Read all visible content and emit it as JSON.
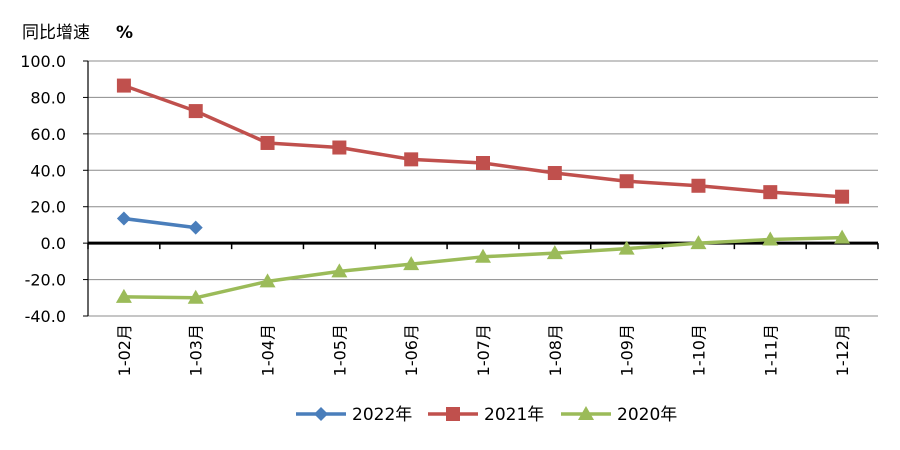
{
  "chart_data": {
    "type": "line",
    "ylabel": "同比增速",
    "yunit": "%",
    "ylim": [
      -40,
      100
    ],
    "yticks": [
      100,
      80,
      60,
      40,
      20,
      0,
      -20,
      -40
    ],
    "ytick_labels": [
      "100.0",
      "80.0",
      "60.0",
      "40.0",
      "20.0",
      "0.0",
      "-20.0",
      "-40.0"
    ],
    "grid": true,
    "legend": "bottom",
    "categories": [
      "1-02月",
      "1-03月",
      "1-04月",
      "1-05月",
      "1-06月",
      "1-07月",
      "1-08月",
      "1-09月",
      "1-10月",
      "1-11月",
      "1-12月"
    ],
    "series": [
      {
        "name": "2022年",
        "marker": "diamond",
        "color": "#4a7ebb",
        "values": [
          13.5,
          8.5,
          null,
          null,
          null,
          null,
          null,
          null,
          null,
          null,
          null
        ]
      },
      {
        "name": "2021年",
        "marker": "square",
        "color": "#c0504d",
        "values": [
          86.5,
          72.5,
          55.0,
          52.5,
          46.0,
          44.0,
          38.5,
          34.0,
          31.5,
          28.0,
          25.5
        ]
      },
      {
        "name": "2020年",
        "marker": "triangle",
        "color": "#9bbb59",
        "values": [
          -29.5,
          -30.0,
          -21.0,
          -15.5,
          -11.5,
          -7.5,
          -5.5,
          -3.0,
          0.0,
          2.0,
          3.0
        ]
      }
    ]
  }
}
